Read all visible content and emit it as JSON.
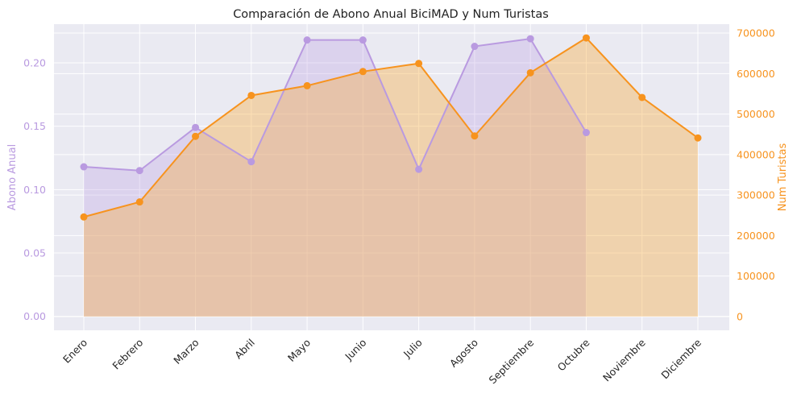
{
  "chart_data": {
    "type": "area",
    "title": "Comparación de Abono Anual BiciMAD y Num Turistas",
    "categories": [
      "Enero",
      "Febrero",
      "Marzo",
      "Abril",
      "Mayo",
      "Junio",
      "Julio",
      "Agosto",
      "Septiembre",
      "Octubre",
      "Noviembre",
      "Diciembre"
    ],
    "ylabel_left": "Abono Anual",
    "ylabel_right": "Num Turistas",
    "ylim_left": [
      -0.011,
      0.2305
    ],
    "ylim_right": [
      -34000,
      722000
    ],
    "yticks_left": [
      "0.00",
      "0.05",
      "0.10",
      "0.15",
      "0.20"
    ],
    "yticks_right": [
      "0",
      "100000",
      "200000",
      "300000",
      "400000",
      "500000",
      "600000",
      "700000"
    ],
    "grid": true,
    "series": [
      {
        "name": "Abono Anual",
        "axis": "left",
        "color": "#b99ae0",
        "values": [
          0.118,
          0.115,
          0.149,
          0.122,
          0.218,
          0.218,
          0.116,
          0.213,
          0.219,
          0.145,
          null,
          null
        ]
      },
      {
        "name": "Num Turistas",
        "axis": "right",
        "color": "#f7931e",
        "values": [
          246000,
          283000,
          445000,
          546000,
          570000,
          605000,
          625000,
          446000,
          602000,
          688000,
          541000,
          441000
        ]
      }
    ]
  }
}
